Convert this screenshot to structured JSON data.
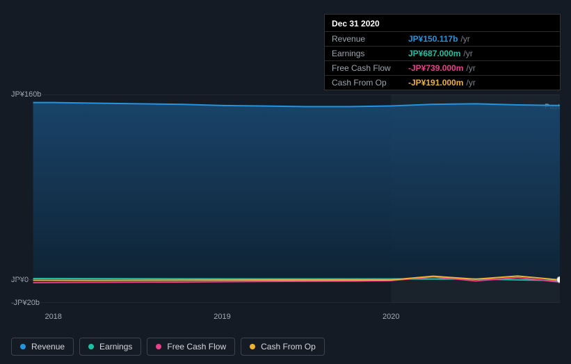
{
  "tooltip": {
    "date": "Dec 31 2020",
    "rows": [
      {
        "label": "Revenue",
        "value": "JP¥150.117b",
        "unit": "/yr",
        "color": "#2394df"
      },
      {
        "label": "Earnings",
        "value": "JP¥687.000m",
        "unit": "/yr",
        "color": "#1bc1a3"
      },
      {
        "label": "Free Cash Flow",
        "value": "-JP¥739.000m",
        "unit": "/yr",
        "color": "#e64189"
      },
      {
        "label": "Cash From Op",
        "value": "-JP¥191.000m",
        "unit": "/yr",
        "color": "#eeb132"
      }
    ]
  },
  "chart": {
    "type": "area",
    "background_color": "#151b24",
    "plot_fill_color_top": "#163b5c",
    "plot_fill_color_bottom": "#0f2438",
    "grid_color": "#2a3340",
    "y_axis": {
      "min_b": -20,
      "max_b": 160,
      "ticks": [
        {
          "value_b": 160,
          "label": "JP¥160b"
        },
        {
          "value_b": 0,
          "label": "JP¥0"
        },
        {
          "value_b": -20,
          "label": "-JP¥20b"
        }
      ]
    },
    "x_axis": {
      "min_year": 2017.75,
      "max_year": 2021.0,
      "ticks": [
        {
          "year": 2018,
          "label": "2018"
        },
        {
          "year": 2019,
          "label": "2019"
        },
        {
          "year": 2020,
          "label": "2020"
        }
      ],
      "past_label": "Past"
    },
    "hover_x_year": 2020.0,
    "marker_x_year": 2021.0,
    "marker_y_b": 0,
    "plot_left_start_year": 2017.88,
    "series": [
      {
        "name": "Revenue",
        "color": "#2394df",
        "line_width": 2,
        "fill": true,
        "points_b": [
          {
            "y": 2017.88,
            "v": 153
          },
          {
            "y": 2018.0,
            "v": 153
          },
          {
            "y": 2018.25,
            "v": 152.5
          },
          {
            "y": 2018.5,
            "v": 152
          },
          {
            "y": 2018.75,
            "v": 151.5
          },
          {
            "y": 2019.0,
            "v": 150.5
          },
          {
            "y": 2019.25,
            "v": 150
          },
          {
            "y": 2019.5,
            "v": 149.5
          },
          {
            "y": 2019.75,
            "v": 149.5
          },
          {
            "y": 2020.0,
            "v": 150.12
          },
          {
            "y": 2020.25,
            "v": 151.5
          },
          {
            "y": 2020.5,
            "v": 152
          },
          {
            "y": 2020.75,
            "v": 151
          },
          {
            "y": 2021.0,
            "v": 150.5
          }
        ]
      },
      {
        "name": "Earnings",
        "color": "#1bc1a3",
        "line_width": 2,
        "fill": false,
        "points_b": [
          {
            "y": 2017.88,
            "v": 1.0
          },
          {
            "y": 2018.25,
            "v": 0.9
          },
          {
            "y": 2018.75,
            "v": 0.8
          },
          {
            "y": 2019.25,
            "v": 0.7
          },
          {
            "y": 2019.75,
            "v": 0.7
          },
          {
            "y": 2020.0,
            "v": 0.69
          },
          {
            "y": 2020.5,
            "v": 0.6
          },
          {
            "y": 2021.0,
            "v": -0.8
          }
        ]
      },
      {
        "name": "Free Cash Flow",
        "color": "#e64189",
        "line_width": 2,
        "fill": false,
        "points_b": [
          {
            "y": 2017.88,
            "v": -2.5
          },
          {
            "y": 2018.25,
            "v": -2.2
          },
          {
            "y": 2018.75,
            "v": -2.0
          },
          {
            "y": 2019.25,
            "v": -1.5
          },
          {
            "y": 2019.75,
            "v": -1.2
          },
          {
            "y": 2020.0,
            "v": -0.74
          },
          {
            "y": 2020.25,
            "v": 2.5
          },
          {
            "y": 2020.5,
            "v": -1.0
          },
          {
            "y": 2020.75,
            "v": 1.8
          },
          {
            "y": 2021.0,
            "v": -2.0
          }
        ]
      },
      {
        "name": "Cash From Op",
        "color": "#eeb132",
        "line_width": 2,
        "fill": false,
        "points_b": [
          {
            "y": 2017.88,
            "v": -0.5
          },
          {
            "y": 2018.25,
            "v": -0.6
          },
          {
            "y": 2018.75,
            "v": -0.4
          },
          {
            "y": 2019.25,
            "v": -0.3
          },
          {
            "y": 2019.75,
            "v": -0.3
          },
          {
            "y": 2020.0,
            "v": -0.19
          },
          {
            "y": 2020.25,
            "v": 3.0
          },
          {
            "y": 2020.5,
            "v": 0.5
          },
          {
            "y": 2020.75,
            "v": 3.2
          },
          {
            "y": 2021.0,
            "v": -0.2
          }
        ]
      }
    ]
  },
  "legend": {
    "items": [
      {
        "label": "Revenue",
        "color": "#2394df"
      },
      {
        "label": "Earnings",
        "color": "#1bc1a3"
      },
      {
        "label": "Free Cash Flow",
        "color": "#e64189"
      },
      {
        "label": "Cash From Op",
        "color": "#eeb132"
      }
    ]
  }
}
